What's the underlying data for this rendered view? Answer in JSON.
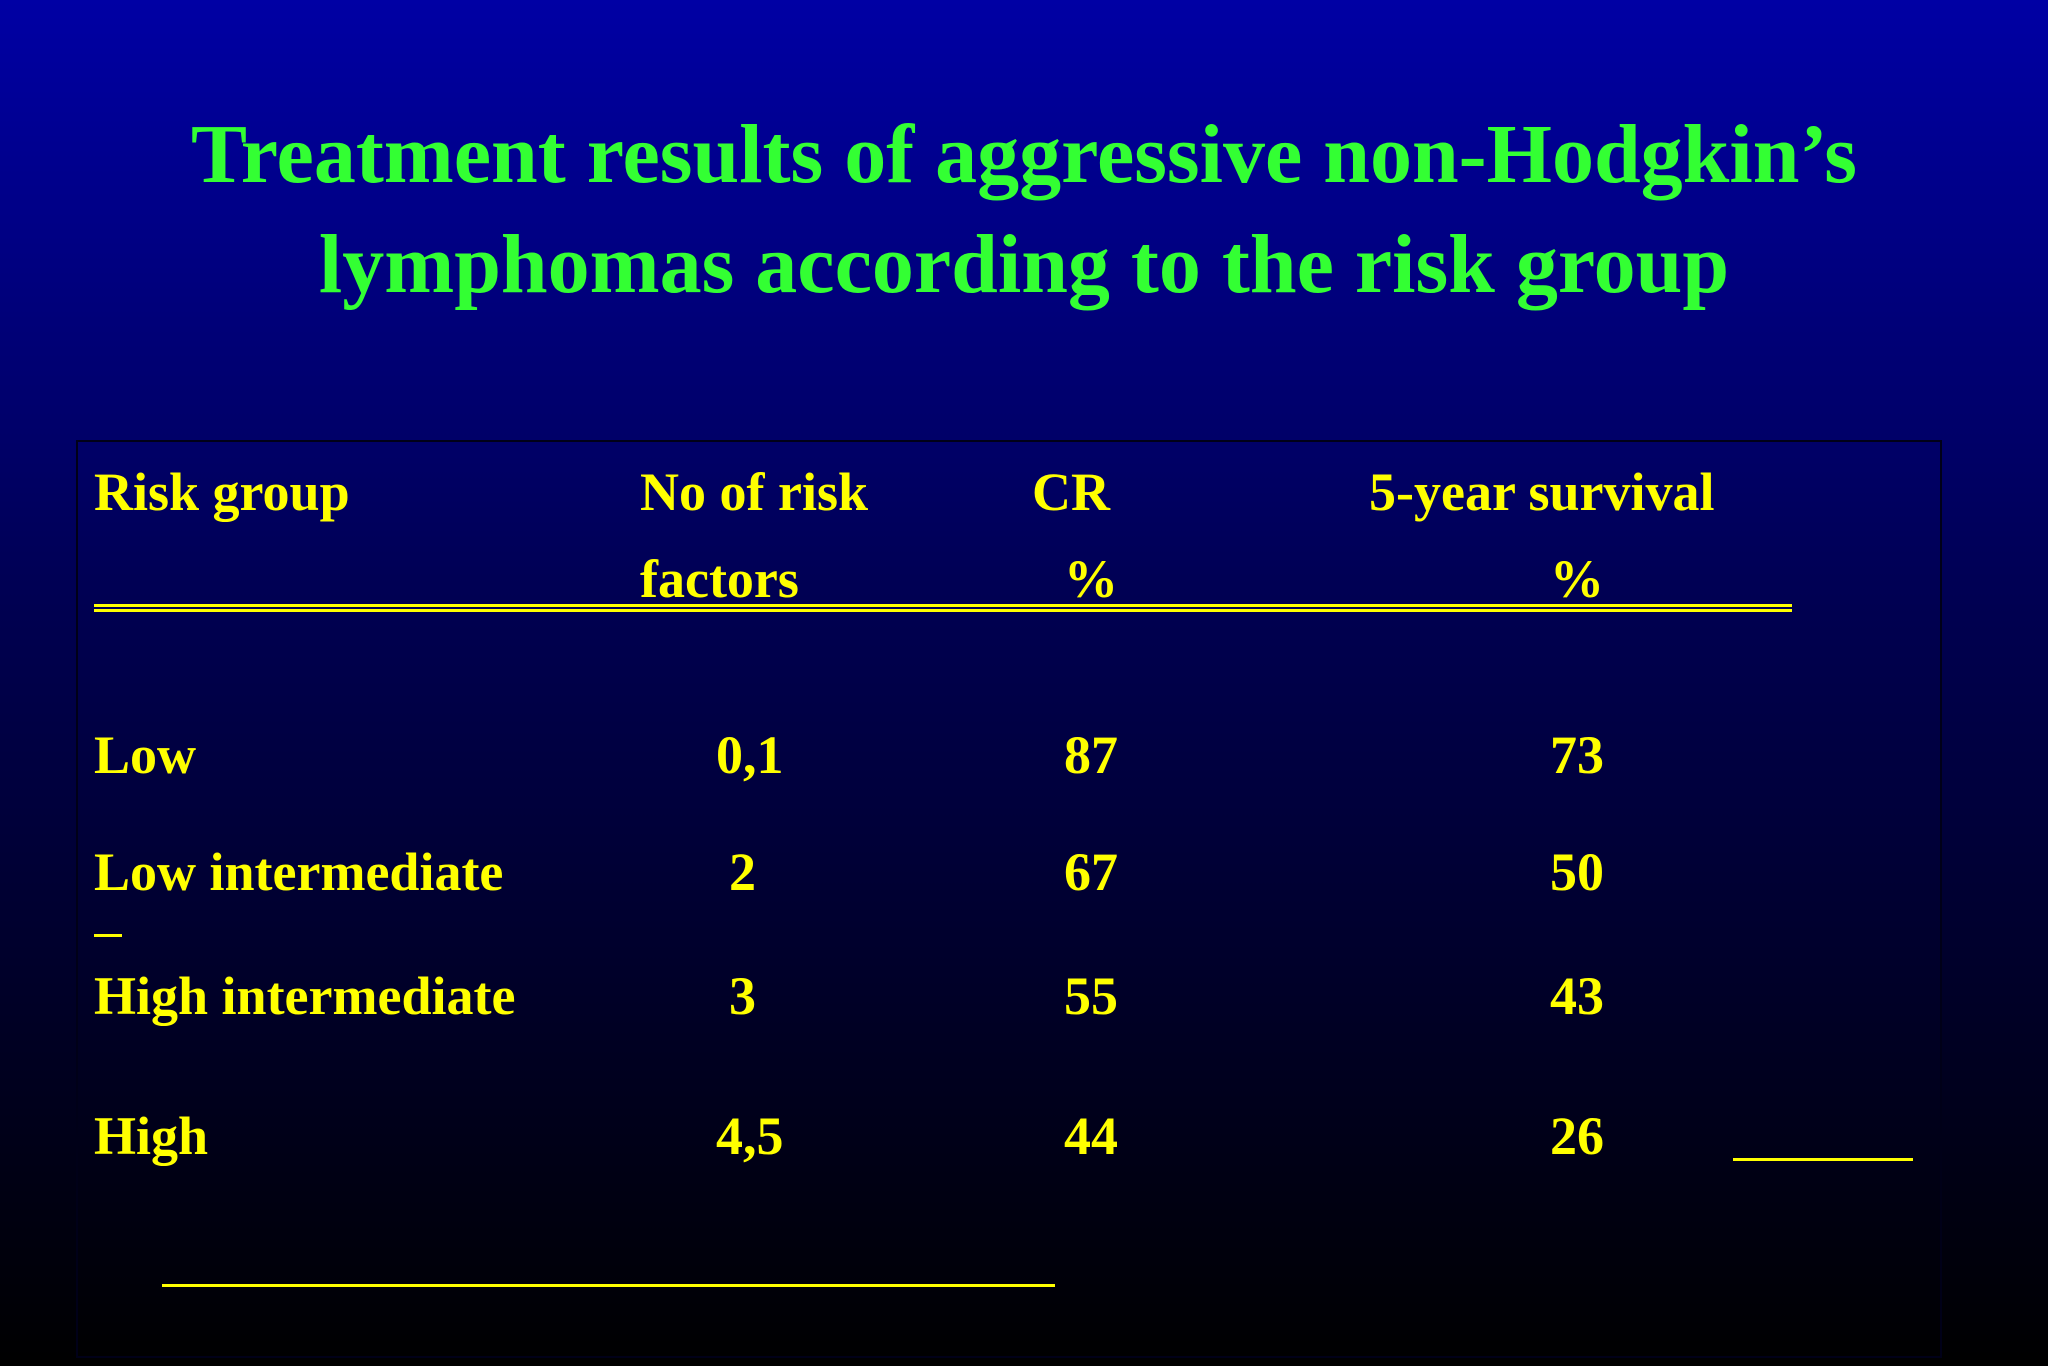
{
  "title": "Treatment results of aggressive non-Hodgkin’s lymphomas according to the risk group",
  "table": {
    "headers": [
      [
        "Risk group"
      ],
      [
        "No of risk",
        "factors"
      ],
      [
        "CR",
        "%"
      ],
      [
        "5-year survival",
        "%"
      ]
    ],
    "rows": [
      [
        "Low",
        "0,1",
        "87",
        "73"
      ],
      [
        "Low intermediate",
        "2",
        "67",
        "50"
      ],
      [
        "High intermediate",
        "3",
        "55",
        "43"
      ],
      [
        "High",
        "4,5",
        "44",
        "26"
      ]
    ]
  }
}
